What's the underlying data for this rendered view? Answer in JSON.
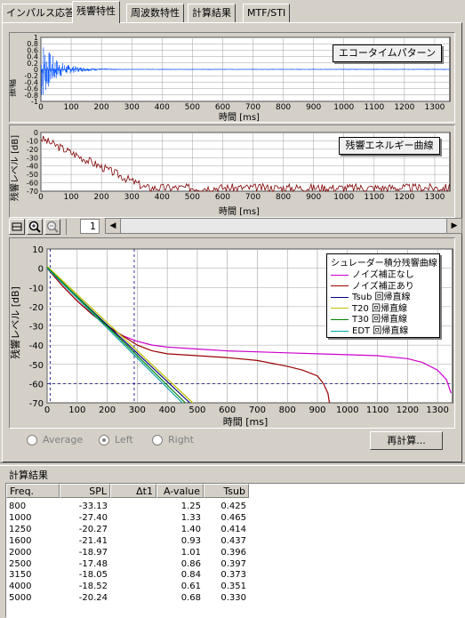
{
  "tabs": [
    {
      "label": "インパルス応答",
      "active": false
    },
    {
      "label": "残響特性",
      "active": true
    },
    {
      "label": "周波数特性",
      "active": false
    },
    {
      "label": "計算結果",
      "active": false
    },
    {
      "label": "MTF/STI",
      "active": false
    }
  ],
  "echo_panel": {
    "box_label": "エコータイムパターン",
    "ylabel": "振幅",
    "xlabel": "時間 [ms]",
    "y_ticks": [
      "1",
      "0.8",
      "0.6",
      "0.4",
      "0.2",
      "0",
      "-0.2",
      "-0.4",
      "-0.6",
      "-0.8",
      "-1"
    ],
    "x_ticks": [
      "0",
      "100",
      "200",
      "300",
      "400",
      "500",
      "600",
      "700",
      "800",
      "900",
      "1000",
      "1100",
      "1200",
      "1300"
    ]
  },
  "energy_panel": {
    "box_label": "残響エネルギー曲線",
    "ylabel": "残響レベル [dB]",
    "xlabel": "時間 [ms]",
    "y_ticks": [
      "0",
      "-10",
      "-20",
      "-30",
      "-40",
      "-50",
      "-60",
      "-70"
    ],
    "x_ticks": [
      "0",
      "100",
      "200",
      "300",
      "400",
      "500",
      "600",
      "700",
      "800",
      "900",
      "1000",
      "1100",
      "1200",
      "1300"
    ]
  },
  "toolbar": {
    "page_value": "1"
  },
  "chart_data": {
    "type": "line",
    "xlabel": "時間 [ms]",
    "ylabel": "残響レベル [dB]",
    "xlim": [
      0,
      1350
    ],
    "ylim": [
      -70,
      10
    ],
    "x_ticks": [
      "0",
      "100",
      "200",
      "300",
      "400",
      "500",
      "600",
      "700",
      "800",
      "900",
      "1000",
      "1100",
      "1200",
      "1300"
    ],
    "y_ticks": [
      "10",
      "0",
      "-10",
      "-20",
      "-30",
      "-40",
      "-50",
      "-60",
      "-70"
    ],
    "legend_title": "シュレーダー積分残響曲線",
    "legend_placement": "top-right",
    "grid": true,
    "series": [
      {
        "name": "ノイズ補正なし",
        "color": "#cc00cc",
        "x": [
          0,
          50,
          100,
          150,
          200,
          250,
          300,
          350,
          400,
          500,
          600,
          700,
          800,
          900,
          1000,
          1100,
          1200,
          1250,
          1300,
          1330,
          1345
        ],
        "y": [
          0,
          -9,
          -17,
          -24,
          -30,
          -35,
          -38,
          -40,
          -41,
          -42,
          -43,
          -43.5,
          -44,
          -44.5,
          -45,
          -45.5,
          -47,
          -49,
          -53,
          -58,
          -65
        ]
      },
      {
        "name": "ノイズ補正あり",
        "color": "#990000",
        "x": [
          0,
          50,
          100,
          150,
          200,
          250,
          300,
          350,
          400,
          500,
          600,
          700,
          800,
          850,
          900,
          920,
          935,
          940
        ],
        "y": [
          0,
          -9,
          -17,
          -24,
          -30,
          -35,
          -40,
          -43,
          -44.5,
          -45.5,
          -46.5,
          -48,
          -51,
          -53,
          -56,
          -60,
          -65,
          -70
        ]
      },
      {
        "name": "Tsub 回帰直線",
        "color": "#000080",
        "x": [
          0,
          475
        ],
        "y": [
          0,
          -70
        ]
      },
      {
        "name": "T20 回帰直線",
        "color": "#c0c000",
        "x": [
          0,
          485
        ],
        "y": [
          1,
          -70
        ]
      },
      {
        "name": "T30 回帰直線",
        "color": "#008000",
        "x": [
          0,
          460
        ],
        "y": [
          0.5,
          -70
        ]
      },
      {
        "name": "EDT 回帰直線",
        "color": "#00a0a0",
        "x": [
          0,
          450
        ],
        "y": [
          0,
          -70
        ]
      }
    ],
    "reference_lines": [
      {
        "axis": "x",
        "value": 10
      },
      {
        "axis": "x",
        "value": 290
      },
      {
        "axis": "y",
        "value": -60
      }
    ]
  },
  "radios": [
    {
      "label": "Average",
      "checked": false
    },
    {
      "label": "Left",
      "checked": true
    },
    {
      "label": "Right",
      "checked": false
    }
  ],
  "recalc_button": "再計算...",
  "results": {
    "title": "計算結果",
    "headers": [
      "Freq.",
      "SPL",
      "Δt1",
      "A-value",
      "Tsub"
    ],
    "rows": [
      [
        "800",
        "-33.13",
        "",
        "1.25",
        "0.425"
      ],
      [
        "1000",
        "-27.40",
        "",
        "1.33",
        "0.465"
      ],
      [
        "1250",
        "-20.27",
        "",
        "1.40",
        "0.414"
      ],
      [
        "1600",
        "-21.41",
        "",
        "0.93",
        "0.437"
      ],
      [
        "2000",
        "-18.97",
        "",
        "1.01",
        "0.396"
      ],
      [
        "2500",
        "-17.48",
        "",
        "0.86",
        "0.397"
      ],
      [
        "3150",
        "-18.05",
        "",
        "0.84",
        "0.373"
      ],
      [
        "4000",
        "-18.52",
        "",
        "0.61",
        "0.351"
      ],
      [
        "5000",
        "-20.24",
        "",
        "0.68",
        "0.330"
      ]
    ]
  }
}
